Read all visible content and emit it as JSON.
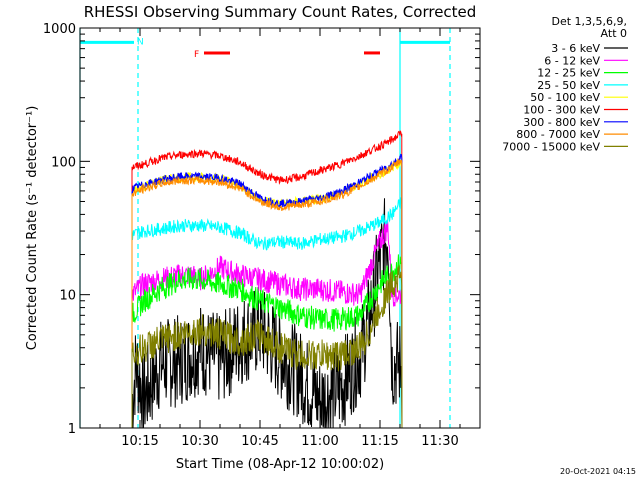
{
  "chart_data": {
    "type": "line",
    "title": "RHESSI Observing Summary Count Rates, Corrected",
    "xlabel": "Start Time (08-Apr-12 10:00:02)",
    "ylabel": "Corrected Count Rate (s⁻¹ detector⁻¹)",
    "yscale": "log",
    "ylim": [
      1,
      1000
    ],
    "xlim_minutes": [
      0,
      40
    ],
    "x_ticks": [
      {
        "min": 15,
        "label": "10:15"
      },
      {
        "min": 30,
        "label": "10:30"
      },
      {
        "min": 45,
        "label": "10:45"
      },
      {
        "min": 60,
        "label": "11:00"
      },
      {
        "min": 75,
        "label": "11:15"
      },
      {
        "min": 90,
        "label": "11:30"
      }
    ],
    "y_ticks": [
      {
        "value": 1,
        "label": "1"
      },
      {
        "value": 10,
        "label": "10"
      },
      {
        "value": 100,
        "label": "100"
      },
      {
        "value": 1000,
        "label": "1000"
      }
    ],
    "legend_header": [
      "Det 1,3,5,6,9,",
      "Att 0"
    ],
    "legend_position": "right",
    "series": [
      {
        "name": "3 - 6 keV",
        "color": "#000000",
        "x": [
          13,
          14,
          16,
          20,
          25,
          30,
          35,
          40,
          45,
          50,
          55,
          60,
          65,
          70,
          72,
          75,
          77,
          78,
          80,
          80.5
        ],
        "y": [
          1.5,
          3,
          1.7,
          3,
          3.2,
          4,
          3.2,
          4.5,
          5.5,
          3.5,
          2.5,
          1.6,
          2,
          3.5,
          6,
          18,
          30,
          3,
          3,
          3
        ]
      },
      {
        "name": "6 - 12 keV",
        "color": "#ff00ff",
        "x": [
          13,
          16,
          20,
          25,
          28,
          30,
          35,
          40,
          45,
          50,
          55,
          60,
          65,
          70,
          75,
          77,
          78,
          80,
          80.5
        ],
        "y": [
          10,
          12,
          13,
          14,
          14,
          13,
          16,
          14,
          13,
          12,
          11,
          11,
          10.5,
          10,
          25,
          33,
          10,
          10,
          10
        ]
      },
      {
        "name": "12 - 25 keV",
        "color": "#00ff00",
        "x": [
          13,
          16,
          20,
          25,
          30,
          35,
          40,
          45,
          50,
          55,
          60,
          65,
          70,
          75,
          78,
          80,
          80.5
        ],
        "y": [
          7,
          9,
          11,
          13,
          13,
          12,
          11,
          9,
          8,
          7,
          6.5,
          6.5,
          7,
          12,
          15,
          17,
          17
        ]
      },
      {
        "name": "25 - 50 keV",
        "color": "#00ffff",
        "x": [
          13,
          16,
          20,
          25,
          30,
          35,
          40,
          45,
          50,
          55,
          60,
          65,
          70,
          75,
          78,
          80,
          80.5
        ],
        "y": [
          28,
          30,
          31,
          33,
          33,
          32,
          29,
          24,
          25,
          24,
          26,
          27,
          30,
          35,
          40,
          48,
          50
        ]
      },
      {
        "name": "50 - 100 keV",
        "color": "#ffff00",
        "x": [
          13,
          16,
          20,
          25,
          30,
          35,
          40,
          45,
          50,
          55,
          60,
          65,
          70,
          75,
          78,
          80,
          80.5
        ],
        "y": [
          60,
          65,
          72,
          76,
          76,
          75,
          66,
          52,
          48,
          50,
          52,
          58,
          68,
          80,
          90,
          98,
          100
        ]
      },
      {
        "name": "100 - 300 keV",
        "color": "#ff0000",
        "x": [
          13,
          16,
          20,
          25,
          30,
          35,
          40,
          45,
          50,
          55,
          60,
          65,
          70,
          75,
          78,
          80,
          80.5
        ],
        "y": [
          90,
          95,
          105,
          112,
          115,
          110,
          98,
          80,
          72,
          76,
          85,
          95,
          110,
          130,
          145,
          160,
          165
        ]
      },
      {
        "name": "300 - 800 keV",
        "color": "#0000ff",
        "x": [
          13,
          16,
          20,
          25,
          30,
          35,
          40,
          45,
          50,
          55,
          60,
          65,
          70,
          75,
          78,
          80,
          80.5
        ],
        "y": [
          62,
          67,
          72,
          77,
          77,
          75,
          68,
          53,
          48,
          50,
          53,
          59,
          70,
          85,
          95,
          105,
          110
        ]
      },
      {
        "name": "800 - 7000 keV",
        "color": "#ff8c00",
        "x": [
          13,
          16,
          20,
          25,
          30,
          35,
          40,
          45,
          50,
          55,
          60,
          65,
          70,
          75,
          78,
          80,
          80.5
        ],
        "y": [
          57,
          62,
          68,
          72,
          72,
          70,
          63,
          50,
          45,
          47,
          50,
          55,
          65,
          80,
          90,
          100,
          103
        ]
      },
      {
        "name": "7000 - 15000 keV",
        "color": "#808000",
        "x": [
          13,
          16,
          20,
          25,
          30,
          35,
          40,
          45,
          50,
          55,
          60,
          65,
          70,
          72,
          75,
          78,
          80,
          80.5
        ],
        "y": [
          3.5,
          4,
          4.5,
          5,
          5.5,
          5,
          4.5,
          5,
          4,
          3.5,
          3.5,
          3.5,
          4,
          5,
          8,
          12,
          14,
          14
        ]
      }
    ],
    "annotations": [
      {
        "label": "N",
        "color": "#00ffff",
        "kind": "bar",
        "x0": 0,
        "x1": 13.5,
        "y": 780
      },
      {
        "label": "",
        "color": "#00ffff",
        "kind": "bar",
        "x0": 80,
        "x1": 92.5,
        "y": 780
      },
      {
        "label": "F",
        "color": "#ff0000",
        "kind": "bar",
        "x0": 31,
        "x1": 37.5,
        "y": 650
      },
      {
        "label": "",
        "color": "#ff0000",
        "kind": "bar",
        "x0": 71,
        "x1": 75,
        "y": 650
      }
    ],
    "vlines": [
      {
        "x": 0,
        "color": "#00ffff",
        "style": "solid"
      },
      {
        "x": 14.5,
        "color": "#00ffff",
        "style": "dashed"
      },
      {
        "x": 80,
        "color": "#00ffff",
        "style": "solid"
      },
      {
        "x": 92.5,
        "color": "#00ffff",
        "style": "dashed"
      }
    ],
    "timestamp": "20-Oct-2021 04:15"
  }
}
